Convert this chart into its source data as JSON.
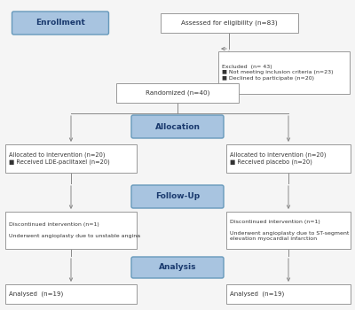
{
  "bg_color": "#f5f5f5",
  "blue_box_color": "#a8c4e0",
  "blue_box_edge": "#6699bb",
  "white_box_edge": "#999999",
  "white_box_fill": "#ffffff",
  "text_color": "#333333",
  "blue_text_color": "#1a3a6e",
  "line_color": "#888888",
  "enrollment_label": "Enrollment",
  "allocation_label": "Allocation",
  "followup_label": "Follow-Up",
  "analysis_label": "Analysis",
  "assessed_text": "Assessed for eligibility (n=83)",
  "excluded_text": "Excluded  (n= 43)\n■ Not meeting inclusion criteria (n=23)\n■ Declined to participate (n=20)",
  "randomized_text": "Randomized (n=40)",
  "left_alloc_text": "Allocated to intervention (n=20)\n■ Received LDE-paclitaxel (n=20)",
  "right_alloc_text": "Allocated to intervention (n=20)\n■ Received placebo (n=20)",
  "left_followup_text": "Discontinued intervention (n=1)\n\nUnderwent angioplasty due to unstable angina",
  "right_followup_text": "Discontinued intervention (n=1)\n\nUnderwent angioplasty due to ST-segment\nelevation myocardial infarction",
  "left_analysis_text": "Analysed  (n=19)",
  "right_analysis_text": "Analysed  (n=19)"
}
